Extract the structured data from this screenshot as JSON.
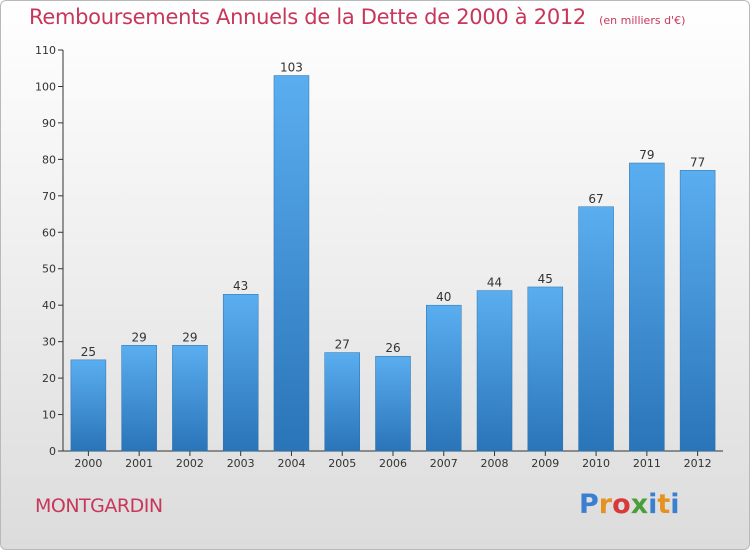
{
  "chart_data": {
    "type": "bar",
    "title": "Remboursements Annuels de la Dette de 2000 à 2012",
    "subtitle": "(en milliers d'€)",
    "categories": [
      "2000",
      "2001",
      "2002",
      "2003",
      "2004",
      "2005",
      "2006",
      "2007",
      "2008",
      "2009",
      "2010",
      "2011",
      "2012"
    ],
    "values": [
      25,
      29,
      29,
      43,
      103,
      27,
      26,
      40,
      44,
      45,
      67,
      79,
      77
    ],
    "ylim": [
      0,
      110
    ],
    "yticks": [
      0,
      10,
      20,
      30,
      40,
      50,
      60,
      70,
      80,
      90,
      100,
      110
    ],
    "grid": false,
    "bar_color": "#3a8fd6"
  },
  "footer": {
    "commune": "MONTGARDIN",
    "brand": "Proxiti",
    "brand_colors": [
      "#3a7fd0",
      "#e5921e",
      "#d83a3a",
      "#4a9e3a",
      "#3a7fd0",
      "#e5921e",
      "#3a7fd0"
    ]
  },
  "colors": {
    "title": "#c8365a",
    "axis": "#333333"
  }
}
